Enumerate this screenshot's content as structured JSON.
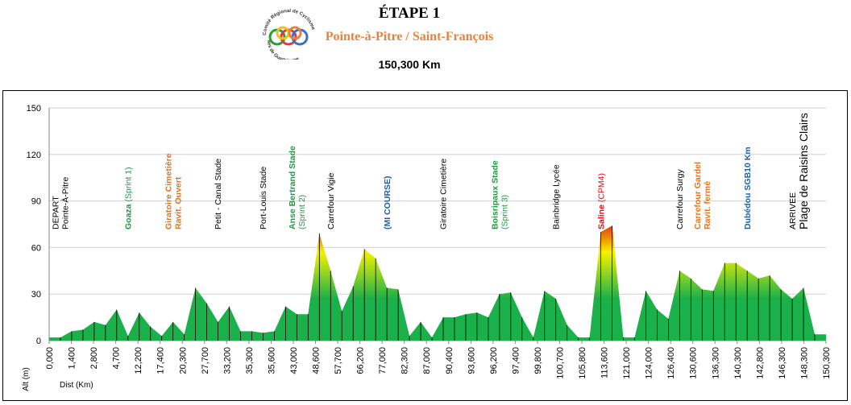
{
  "header": {
    "stage": "ÉTAPE 1",
    "route": "Pointe-à-Pitre / Saint-François",
    "distance": "150,300 Km",
    "logo_text_top": "Comité Régional de Cyclisme",
    "logo_text_bottom": "Îles de Guadeloupe"
  },
  "colors": {
    "profile_low": "#1ab04a",
    "profile_mid": "#f5f200",
    "profile_high": "#e01010",
    "green_label": "#1a9c3c",
    "orange_label": "#e8701a",
    "blue_label": "#1a5fb4",
    "red_label": "#e01010",
    "black_label": "#000000"
  },
  "chart_data": {
    "type": "area",
    "title": "",
    "xlabel": "Dist (Km)",
    "ylabel": "Alt (m)",
    "ylim": [
      0,
      150
    ],
    "yticks": [
      0,
      30,
      60,
      90,
      120,
      150
    ],
    "grid": "horizontal",
    "xticks": [
      "0,000",
      "1,400",
      "2,800",
      "4,700",
      "12,200",
      "17,400",
      "20,300",
      "27,700",
      "33,200",
      "35,300",
      "35,600",
      "43,000",
      "48,600",
      "57,700",
      "66,200",
      "77,000",
      "82,300",
      "87,000",
      "90,400",
      "93,600",
      "96,200",
      "97,400",
      "99,800",
      "100,700",
      "105,800",
      "113,600",
      "121,000",
      "124,000",
      "126,400",
      "130,600",
      "136,300",
      "140,300",
      "142,800",
      "146,300",
      "148,300",
      "150,300"
    ],
    "altitudes": [
      2,
      2,
      6,
      7,
      12,
      10,
      20,
      3,
      18,
      9,
      3,
      12,
      4,
      34,
      24,
      12,
      22,
      6,
      6,
      5,
      6,
      22,
      17,
      17,
      69,
      45,
      19,
      35,
      59,
      53,
      34,
      33,
      3,
      12,
      2,
      15,
      15,
      17,
      18,
      15,
      30,
      31,
      15,
      2,
      32,
      27,
      10,
      2,
      2,
      70,
      74,
      2,
      2,
      32,
      20,
      14,
      45,
      40,
      33,
      32,
      50,
      50,
      45,
      40,
      42,
      33,
      27,
      34,
      4,
      4
    ],
    "annotations": [
      {
        "lines": [
          "DEPART",
          "Pointe-À-Pitre"
        ],
        "idx": 1,
        "color": "black_label",
        "bold": false
      },
      {
        "lines": [
          "Goaza (Sprint 1)"
        ],
        "idx": 7,
        "color": "green_label",
        "bold": true,
        "mixed": true,
        "main": "Goaza",
        "sub": " (Sprint 1)"
      },
      {
        "lines": [
          "Giratoire Cimetière",
          "Ravit. Ouvert"
        ],
        "idx": 11,
        "color": "orange_label",
        "bold": true
      },
      {
        "lines": [
          "Petit - Canal Stade"
        ],
        "idx": 15,
        "color": "black_label",
        "bold": false
      },
      {
        "lines": [
          "Port-Louis Stade"
        ],
        "idx": 19,
        "color": "black_label",
        "bold": false
      },
      {
        "lines": [
          "Anse Bertrand Stade",
          "(Sprint 2)"
        ],
        "idx": 22,
        "color": "green_label",
        "bold": true,
        "second_plain": true
      },
      {
        "lines": [
          "Carrefour Vigie"
        ],
        "idx": 25,
        "color": "black_label",
        "bold": false
      },
      {
        "lines": [
          "(MI COURSE)"
        ],
        "idx": 30,
        "color": "blue_label",
        "bold": true
      },
      {
        "lines": [
          "Giratoire Cimetière"
        ],
        "idx": 35,
        "color": "black_label",
        "bold": false
      },
      {
        "lines": [
          "Boisripaux Stade",
          "(Sprint 3)"
        ],
        "idx": 40,
        "color": "green_label",
        "bold": true,
        "second_plain": true
      },
      {
        "lines": [
          "Bainbridge Lycée"
        ],
        "idx": 45,
        "color": "black_label",
        "bold": false
      },
      {
        "lines": [
          "Saline (CPM4)"
        ],
        "idx": 49,
        "color": "red_label",
        "bold": true,
        "mixed": true,
        "main": "Saline",
        "sub": " (CPM4)"
      },
      {
        "lines": [
          "Carrefour Surgy"
        ],
        "idx": 56,
        "color": "black_label",
        "bold": false
      },
      {
        "lines": [
          "Carrefour Gardel",
          "Ravit. fermé"
        ],
        "idx": 58,
        "color": "orange_label",
        "bold": true
      },
      {
        "lines": [
          "Dubédou SGB10 Km"
        ],
        "idx": 62,
        "color": "blue_label",
        "bold": true
      },
      {
        "lines": [
          "ARRIVEE"
        ],
        "idx": 66,
        "color": "black_label",
        "bold": false
      },
      {
        "lines": [
          "Plage de Raisins Clairs"
        ],
        "idx": 67,
        "color": "black_label",
        "bold": false,
        "big": true
      }
    ]
  }
}
